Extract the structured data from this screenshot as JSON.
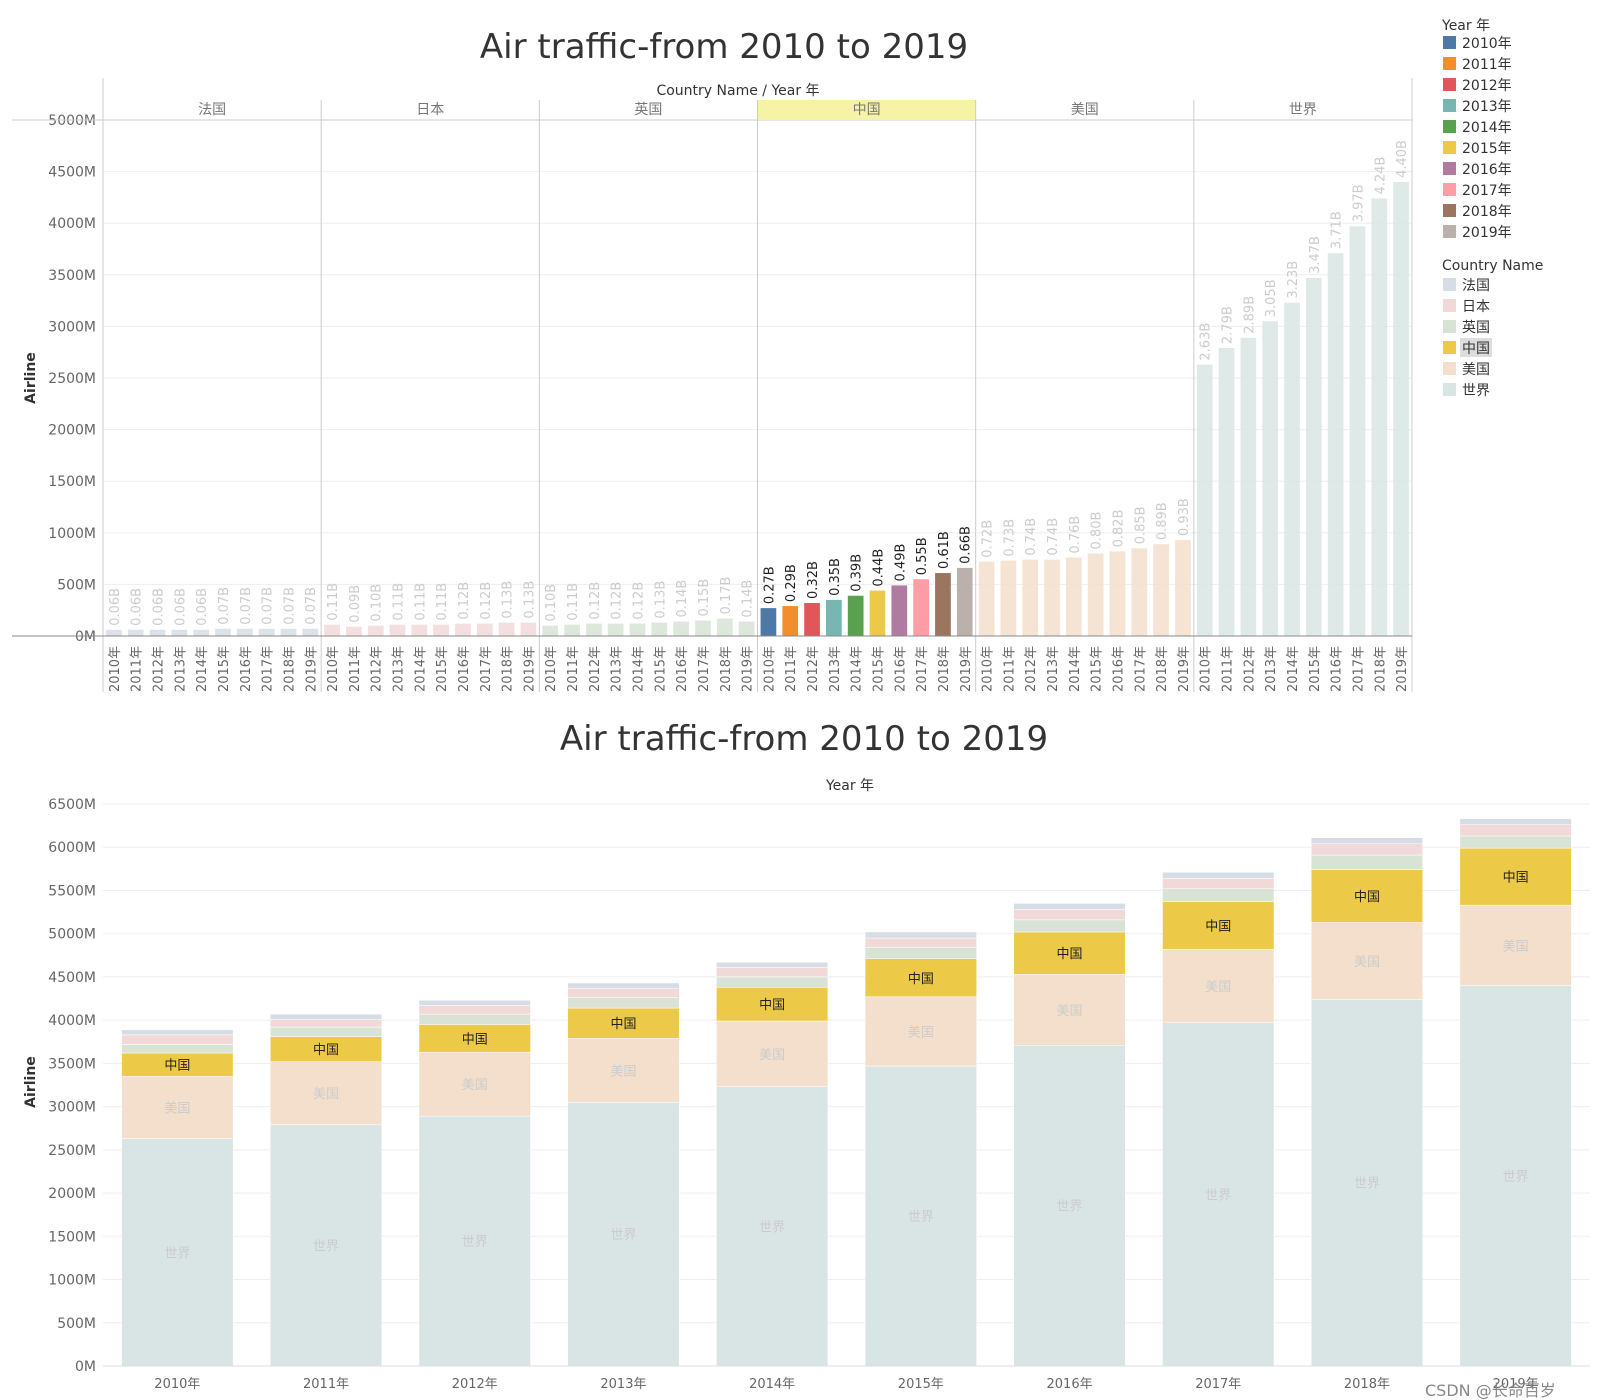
{
  "chart_data": [
    {
      "type": "bar",
      "title": "Air traffic-from 2010 to 2019",
      "xlabel": "Country Name / Year 年",
      "ylabel": "Airline",
      "ylim": [
        0,
        5000
      ],
      "yticks": [
        "0M",
        "500M",
        "1000M",
        "1500M",
        "2000M",
        "2500M",
        "3000M",
        "3500M",
        "4000M",
        "4500M",
        "5000M"
      ],
      "highlighted_country": "中国",
      "countries": [
        "法国",
        "日本",
        "英国",
        "中国",
        "美国",
        "世界"
      ],
      "years": [
        "2010年",
        "2011年",
        "2012年",
        "2013年",
        "2014年",
        "2015年",
        "2016年",
        "2017年",
        "2018年",
        "2019年"
      ],
      "series": [
        {
          "name": "法国",
          "values": [
            60,
            60,
            60,
            60,
            60,
            70,
            70,
            70,
            70,
            70
          ],
          "labels": [
            "0.06B",
            "0.06B",
            "0.06B",
            "0.06B",
            "0.06B",
            "0.07B",
            "0.07B",
            "0.07B",
            "0.07B",
            "0.07B"
          ]
        },
        {
          "name": "日本",
          "values": [
            110,
            90,
            100,
            110,
            110,
            110,
            120,
            120,
            130,
            130
          ],
          "labels": [
            "0.11B",
            "0.09B",
            "0.10B",
            "0.11B",
            "0.11B",
            "0.11B",
            "0.12B",
            "0.12B",
            "0.13B",
            "0.13B"
          ]
        },
        {
          "name": "英国",
          "values": [
            100,
            110,
            120,
            120,
            120,
            130,
            140,
            150,
            170,
            140
          ],
          "labels": [
            "0.10B",
            "0.11B",
            "0.12B",
            "0.12B",
            "0.12B",
            "0.13B",
            "0.14B",
            "0.15B",
            "0.17B",
            "0.14B"
          ]
        },
        {
          "name": "中国",
          "values": [
            270,
            290,
            320,
            350,
            390,
            440,
            490,
            550,
            610,
            660
          ],
          "labels": [
            "0.27B",
            "0.29B",
            "0.32B",
            "0.35B",
            "0.39B",
            "0.44B",
            "0.49B",
            "0.55B",
            "0.61B",
            "0.66B"
          ]
        },
        {
          "name": "美国",
          "values": [
            720,
            730,
            740,
            740,
            760,
            800,
            820,
            850,
            890,
            930
          ],
          "labels": [
            "0.72B",
            "0.73B",
            "0.74B",
            "0.74B",
            "0.76B",
            "0.80B",
            "0.82B",
            "0.85B",
            "0.89B",
            "0.93B"
          ]
        },
        {
          "name": "世界",
          "values": [
            2630,
            2790,
            2890,
            3050,
            3230,
            3470,
            3710,
            3970,
            4240,
            4400
          ],
          "labels": [
            "2.63B",
            "2.79B",
            "2.89B",
            "3.05B",
            "3.23B",
            "3.47B",
            "3.71B",
            "3.97B",
            "4.24B",
            "4.40B"
          ]
        }
      ]
    },
    {
      "type": "bar",
      "stacked": true,
      "title": "Air traffic-from 2010 to 2019",
      "xlabel": "Year 年",
      "ylabel": "Airline",
      "ylim": [
        0,
        6500
      ],
      "yticks": [
        "0M",
        "500M",
        "1000M",
        "1500M",
        "2000M",
        "2500M",
        "3000M",
        "3500M",
        "4000M",
        "4500M",
        "5000M",
        "5500M",
        "6000M",
        "6500M"
      ],
      "categories": [
        "2010年",
        "2011年",
        "2012年",
        "2013年",
        "2014年",
        "2015年",
        "2016年",
        "2017年",
        "2018年",
        "2019年"
      ],
      "stack_order": [
        "世界",
        "美国",
        "中国",
        "英国",
        "日本",
        "法国"
      ]
    }
  ],
  "legend": {
    "year_title": "Year 年",
    "years": [
      "2010年",
      "2011年",
      "2012年",
      "2013年",
      "2014年",
      "2015年",
      "2016年",
      "2017年",
      "2018年",
      "2019年"
    ],
    "country_title": "Country Name",
    "countries": [
      "法国",
      "日本",
      "英国",
      "中国",
      "美国",
      "世界"
    ]
  },
  "colors": {
    "years": [
      "#4e79a7",
      "#f28e2b",
      "#e15759",
      "#76b7b2",
      "#59a14f",
      "#edc948",
      "#b07aa1",
      "#ff9da7",
      "#9c755f",
      "#bab0ac"
    ],
    "countries": [
      "#d6dde5",
      "#f1d9d9",
      "#d8e3d6",
      "#edc948",
      "#f3dfcb",
      "#d9e5e4"
    ],
    "highlight_header": "#f7f3a6"
  },
  "watermark": "CSDN @长命百岁 "
}
